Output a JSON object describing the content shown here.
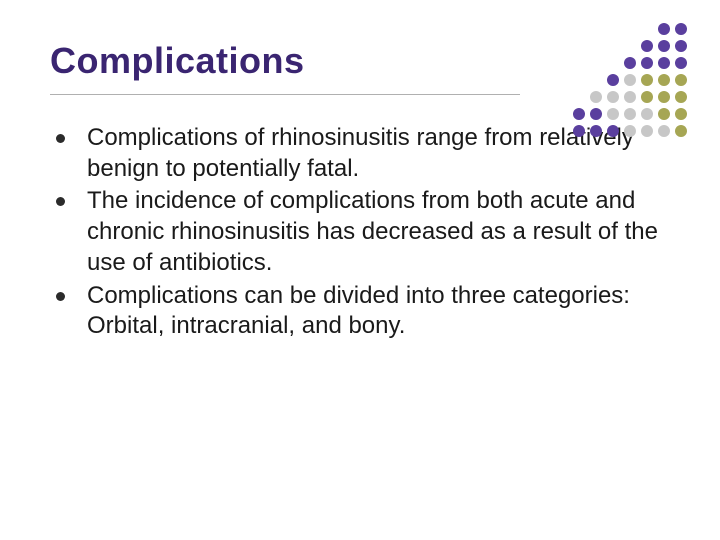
{
  "title": "Complications",
  "title_color": "#3a2571",
  "title_fontsize": 36,
  "rule_color": "#b0b0b0",
  "bullets": [
    "Complications of rhinosinusitis range from relatively benign to potentially fatal.",
    "The incidence of complications from both acute and chronic rhinosinusitis has decreased as a result of the use of antibiotics.",
    "Complications can be divided into three categories:  Orbital, intracranial, and bony."
  ],
  "bullet_marker_color": "#2b2b2b",
  "body_fontsize": 24,
  "body_color": "#1a1a1a",
  "decoration": {
    "colors": {
      "purple": "#5a3f9e",
      "olive": "#a6a654",
      "gray": "#c7c7c7"
    },
    "cells": [
      [
        " ",
        " ",
        " ",
        " ",
        " ",
        "P",
        "P"
      ],
      [
        " ",
        " ",
        " ",
        " ",
        "P",
        "P",
        "P"
      ],
      [
        " ",
        " ",
        " ",
        "P",
        "P",
        "P",
        "P"
      ],
      [
        " ",
        " ",
        "P",
        "G",
        "O",
        "O",
        "O"
      ],
      [
        " ",
        "G",
        "G",
        "G",
        "O",
        "O",
        "O"
      ],
      [
        "P",
        "P",
        "G",
        "G",
        "G",
        "O",
        "O"
      ],
      [
        "P",
        "P",
        "P",
        "G",
        "G",
        "G",
        "O"
      ]
    ]
  }
}
